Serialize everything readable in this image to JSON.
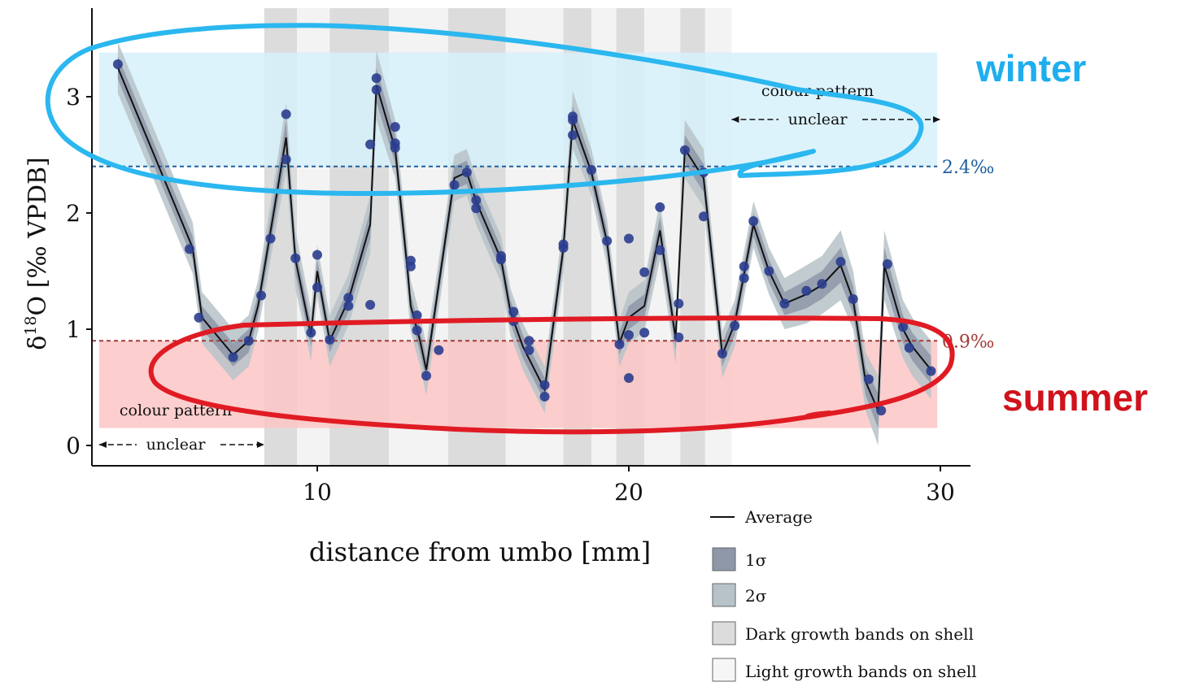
{
  "chart_data": {
    "type": "line",
    "xlabel": "distance from umbo [mm]",
    "ylabel": "δ18O [‰ VPDB]",
    "ylabel_main": "δ",
    "ylabel_sup": "18",
    "ylabel_rest": "O [‰ VPDB]",
    "xlim": [
      2.8,
      31
    ],
    "ylim": [
      -0.15,
      3.8
    ],
    "x_ticks": [
      10,
      20,
      30
    ],
    "y_ticks": [
      0,
      1,
      2,
      3
    ],
    "x_tick_labels": [
      "10",
      "20",
      "30"
    ],
    "y_tick_labels": [
      "0",
      "1",
      "2",
      "3"
    ],
    "grid": false,
    "legend_position": "bottom-right",
    "legend": {
      "average": "Average",
      "sigma1": "1σ",
      "sigma2": "2σ",
      "dark_bands": "Dark growth bands on shell",
      "light_bands": "Light growth bands on shell"
    },
    "colors": {
      "points": "#2b3d8f",
      "average": "#111111",
      "sigma1": "#8e97a8",
      "sigma2": "#b7c3c8",
      "dark_band": "#dcdcdc",
      "light_band": "#f3f3f3",
      "winter_box": "#d6f1fa",
      "summer_box": "#fbc6c6",
      "winter_line": "#1f5fa0",
      "summer_line": "#a33b3b",
      "winter_annotation": "#2bb7ef",
      "summer_annotation": "#e01b24"
    },
    "thresholds": {
      "winter": {
        "value": 2.4,
        "label": "2.4‰"
      },
      "summer": {
        "value": 0.9,
        "label": "0.9‰"
      }
    },
    "winter_range": [
      2.4,
      3.38
    ],
    "summer_range": [
      0.15,
      0.9
    ],
    "growth_bands": [
      {
        "from": 8.3,
        "to": 9.35,
        "kind": "dark"
      },
      {
        "from": 9.35,
        "to": 10.4,
        "kind": "light"
      },
      {
        "from": 10.4,
        "to": 12.3,
        "kind": "dark"
      },
      {
        "from": 12.3,
        "to": 14.2,
        "kind": "light"
      },
      {
        "from": 14.2,
        "to": 16.05,
        "kind": "dark"
      },
      {
        "from": 16.05,
        "to": 17.9,
        "kind": "light"
      },
      {
        "from": 17.9,
        "to": 18.8,
        "kind": "dark"
      },
      {
        "from": 18.8,
        "to": 19.6,
        "kind": "light"
      },
      {
        "from": 19.6,
        "to": 20.5,
        "kind": "dark"
      },
      {
        "from": 20.5,
        "to": 21.65,
        "kind": "light"
      },
      {
        "from": 21.65,
        "to": 22.45,
        "kind": "dark"
      },
      {
        "from": 22.45,
        "to": 23.3,
        "kind": "light"
      }
    ],
    "unclear_left": {
      "from": 3.0,
      "to": 8.3,
      "line1": "colour pattern",
      "line2": "unclear"
    },
    "unclear_right": {
      "from": 23.3,
      "to": 30,
      "line1": "colour pattern",
      "line2": "unclear"
    },
    "average": {
      "x": [
        3.6,
        6.0,
        6.3,
        7.3,
        7.8,
        8.1,
        8.6,
        9.0,
        9.3,
        9.8,
        10.0,
        10.4,
        11.0,
        11.7,
        11.9,
        12.5,
        12.9,
        13.0,
        13.3,
        13.5,
        14.4,
        14.8,
        15.1,
        15.9,
        16.2,
        16.6,
        17.3,
        17.9,
        18.2,
        18.8,
        19.3,
        19.7,
        20.0,
        20.5,
        21.0,
        21.5,
        21.8,
        22.4,
        23.0,
        23.4,
        24.0,
        24.5,
        25.0,
        25.7,
        26.2,
        26.8,
        27.2,
        27.6,
        28.0,
        28.2,
        28.8,
        29.1,
        29.7
      ],
      "y": [
        3.25,
        1.7,
        1.1,
        0.78,
        0.9,
        1.2,
        2.0,
        2.65,
        1.6,
        0.95,
        1.5,
        0.9,
        1.25,
        1.9,
        3.1,
        2.55,
        1.5,
        1.2,
        0.9,
        0.65,
        2.3,
        2.35,
        2.1,
        1.6,
        1.15,
        0.85,
        0.48,
        1.7,
        2.8,
        2.35,
        1.75,
        0.88,
        1.1,
        1.2,
        1.85,
        0.92,
        2.55,
        2.3,
        0.78,
        1.05,
        1.9,
        1.5,
        1.22,
        1.3,
        1.38,
        1.55,
        1.25,
        0.55,
        0.3,
        1.55,
        1.0,
        0.85,
        0.65
      ],
      "s1": [
        0.1,
        0.1,
        0.1,
        0.1,
        0.1,
        0.1,
        0.12,
        0.15,
        0.12,
        0.1,
        0.1,
        0.1,
        0.1,
        0.12,
        0.15,
        0.12,
        0.12,
        0.1,
        0.1,
        0.1,
        0.1,
        0.1,
        0.1,
        0.1,
        0.1,
        0.1,
        0.1,
        0.1,
        0.12,
        0.1,
        0.1,
        0.1,
        0.1,
        0.1,
        0.12,
        0.1,
        0.12,
        0.12,
        0.1,
        0.1,
        0.1,
        0.1,
        0.1,
        0.12,
        0.12,
        0.15,
        0.12,
        0.12,
        0.15,
        0.15,
        0.12,
        0.12,
        0.12
      ],
      "s2": [
        0.22,
        0.22,
        0.22,
        0.22,
        0.22,
        0.22,
        0.25,
        0.3,
        0.25,
        0.22,
        0.22,
        0.22,
        0.22,
        0.25,
        0.3,
        0.25,
        0.25,
        0.22,
        0.22,
        0.22,
        0.2,
        0.2,
        0.2,
        0.2,
        0.2,
        0.2,
        0.2,
        0.22,
        0.25,
        0.2,
        0.2,
        0.2,
        0.22,
        0.22,
        0.25,
        0.22,
        0.25,
        0.25,
        0.2,
        0.2,
        0.2,
        0.2,
        0.22,
        0.25,
        0.25,
        0.3,
        0.25,
        0.25,
        0.3,
        0.3,
        0.25,
        0.25,
        0.25
      ]
    },
    "points": {
      "x": [
        3.6,
        5.9,
        6.2,
        7.3,
        7.8,
        8.2,
        8.5,
        9.0,
        9.0,
        9.3,
        9.8,
        10.0,
        10.0,
        10.4,
        11.0,
        11.0,
        11.7,
        11.7,
        11.9,
        11.9,
        12.5,
        12.5,
        12.5,
        13.0,
        13.0,
        13.2,
        13.2,
        13.5,
        13.9,
        14.4,
        14.8,
        15.1,
        15.1,
        15.9,
        15.9,
        16.3,
        16.3,
        16.8,
        16.8,
        17.3,
        17.3,
        17.9,
        17.9,
        18.2,
        18.2,
        18.2,
        18.8,
        19.3,
        19.7,
        20.0,
        20.0,
        20.0,
        20.5,
        20.5,
        21.0,
        21.0,
        21.6,
        21.6,
        21.8,
        22.4,
        22.4,
        23.0,
        23.4,
        23.7,
        23.7,
        24.0,
        24.5,
        25.0,
        25.7,
        26.2,
        26.8,
        27.2,
        27.7,
        28.1,
        28.3,
        28.8,
        29.0,
        29.7
      ],
      "y": [
        3.28,
        1.69,
        1.1,
        0.76,
        0.9,
        1.29,
        1.78,
        2.85,
        2.46,
        1.61,
        0.97,
        1.36,
        1.64,
        0.91,
        1.2,
        1.27,
        2.59,
        1.21,
        3.16,
        3.06,
        2.74,
        2.6,
        2.56,
        1.59,
        1.54,
        1.12,
        0.99,
        0.6,
        0.82,
        2.24,
        2.35,
        2.11,
        2.04,
        1.6,
        1.63,
        1.15,
        1.07,
        0.82,
        0.9,
        0.42,
        0.52,
        1.73,
        1.7,
        2.67,
        2.8,
        2.83,
        2.37,
        1.76,
        0.87,
        1.78,
        0.95,
        0.58,
        0.97,
        1.49,
        1.68,
        2.05,
        1.22,
        0.93,
        2.54,
        2.35,
        1.97,
        0.79,
        1.03,
        1.44,
        1.54,
        1.93,
        1.5,
        1.22,
        1.33,
        1.39,
        1.58,
        1.26,
        0.57,
        0.3,
        1.56,
        1.02,
        0.84,
        0.64
      ]
    }
  },
  "annotations": {
    "winter_label": "winter",
    "summer_label": "summer"
  }
}
